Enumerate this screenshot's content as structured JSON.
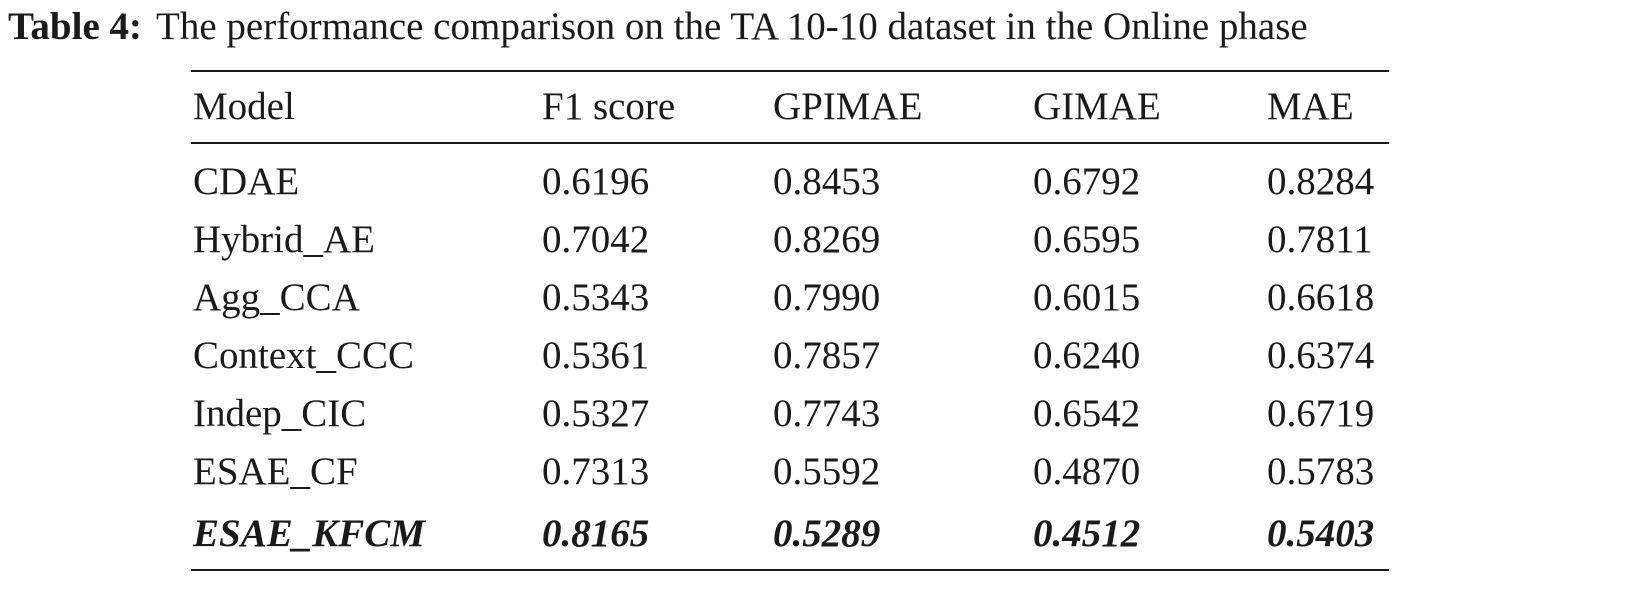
{
  "caption": {
    "label": "Table 4:",
    "text": "The performance comparison on the TA 10-10 dataset in the Online phase"
  },
  "table": {
    "headers": [
      "Model",
      "F1 score",
      "GPIMAE",
      "GIMAE",
      "MAE"
    ],
    "rows": [
      [
        "CDAE",
        "0.6196",
        "0.8453",
        "0.6792",
        "0.8284"
      ],
      [
        "Hybrid_AE",
        "0.7042",
        "0.8269",
        "0.6595",
        "0.7811"
      ],
      [
        "Agg_CCA",
        "0.5343",
        "0.7990",
        "0.6015",
        "0.6618"
      ],
      [
        "Context_CCC",
        "0.5361",
        "0.7857",
        "0.6240",
        "0.6374"
      ],
      [
        "Indep_CIC",
        "0.5327",
        "0.7743",
        "0.6542",
        "0.6719"
      ],
      [
        "ESAE_CF",
        "0.7313",
        "0.5592",
        "0.4870",
        "0.5783"
      ],
      [
        "ESAE_KFCM",
        "0.8165",
        "0.5289",
        "0.4512",
        "0.5403"
      ]
    ],
    "highlighted_row": "ESAE_KFCM"
  }
}
